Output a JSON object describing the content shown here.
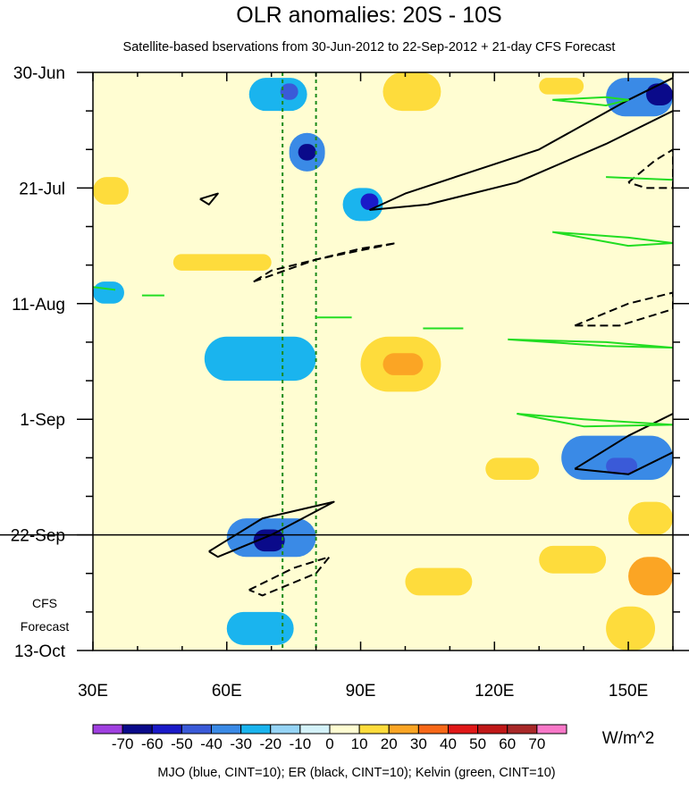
{
  "chart_data": {
    "type": "heatmap",
    "title": "OLR anomalies: 20S - 10S",
    "subtitle": "Satellite-based bservations from 30-Jun-2012 to 22-Sep-2012 + 21-day CFS Forecast",
    "x_axis": {
      "range": [
        30,
        160
      ],
      "ticks": [
        {
          "value": 30,
          "label": "30E"
        },
        {
          "value": 60,
          "label": "60E"
        },
        {
          "value": 90,
          "label": "90E"
        },
        {
          "value": 120,
          "label": "120E"
        },
        {
          "value": 150,
          "label": "150E"
        }
      ]
    },
    "y_axis": {
      "range_days": [
        0,
        105
      ],
      "ticks": [
        {
          "day": 0,
          "label": "30-Jun"
        },
        {
          "day": 21,
          "label": "21-Jul"
        },
        {
          "day": 42,
          "label": "11-Aug"
        },
        {
          "day": 63,
          "label": "1-Sep"
        },
        {
          "day": 84,
          "label": "22-Sep"
        },
        {
          "day": 105,
          "label": "13-Oct"
        }
      ]
    },
    "forecast_start_day": 84,
    "forecast_label": [
      "CFS",
      "Forecast"
    ],
    "reference_longitudes": [
      72.5,
      80
    ],
    "colorbar": {
      "units": "W/m^2",
      "levels": [
        -70,
        -60,
        -50,
        -40,
        -30,
        -20,
        -10,
        0,
        10,
        20,
        30,
        40,
        50,
        60,
        70
      ],
      "colors": [
        "#a040e0",
        "#0a0a8a",
        "#1a1ac8",
        "#3a5ad8",
        "#3a8ae6",
        "#1ab4ee",
        "#96d4f6",
        "#d4f2fa",
        "#fffdd2",
        "#fedc3c",
        "#fba524",
        "#f86818",
        "#e01818",
        "#c01818",
        "#a82828",
        "#f878c8"
      ]
    },
    "anomaly_cells": [
      {
        "lon": [
          65,
          78
        ],
        "day": [
          1,
          7
        ],
        "level": -20
      },
      {
        "lon": [
          72,
          76
        ],
        "day": [
          2,
          5
        ],
        "level": -40
      },
      {
        "lon": [
          74,
          82
        ],
        "day": [
          11,
          18
        ],
        "level": -30
      },
      {
        "lon": [
          76,
          80
        ],
        "day": [
          13,
          16
        ],
        "level": -60
      },
      {
        "lon": [
          86,
          95
        ],
        "day": [
          21,
          27
        ],
        "level": -20
      },
      {
        "lon": [
          90,
          94
        ],
        "day": [
          22,
          25
        ],
        "level": -50
      },
      {
        "lon": [
          145,
          160
        ],
        "day": [
          1,
          8
        ],
        "level": -30
      },
      {
        "lon": [
          154,
          160
        ],
        "day": [
          2,
          6
        ],
        "level": -60
      },
      {
        "lon": [
          55,
          80
        ],
        "day": [
          48,
          56
        ],
        "level": -20
      },
      {
        "lon": [
          135,
          160
        ],
        "day": [
          66,
          74
        ],
        "level": -30
      },
      {
        "lon": [
          145,
          152
        ],
        "day": [
          70,
          73
        ],
        "level": -40
      },
      {
        "lon": [
          60,
          80
        ],
        "day": [
          81,
          88
        ],
        "level": -30
      },
      {
        "lon": [
          66,
          73
        ],
        "day": [
          83,
          87
        ],
        "level": -60
      },
      {
        "lon": [
          30,
          37
        ],
        "day": [
          38,
          42
        ],
        "level": -20
      },
      {
        "lon": [
          60,
          75
        ],
        "day": [
          98,
          104
        ],
        "level": -20
      },
      {
        "lon": [
          30,
          36
        ],
        "day": [
          1,
          6
        ],
        "level": 10
      },
      {
        "lon": [
          95,
          108
        ],
        "day": [
          0,
          7
        ],
        "level": 20
      },
      {
        "lon": [
          130,
          140
        ],
        "day": [
          1,
          4
        ],
        "level": 20
      },
      {
        "lon": [
          30,
          38
        ],
        "day": [
          19,
          24
        ],
        "level": 20
      },
      {
        "lon": [
          48,
          70
        ],
        "day": [
          33,
          36
        ],
        "level": 20
      },
      {
        "lon": [
          90,
          108
        ],
        "day": [
          48,
          58
        ],
        "level": 20
      },
      {
        "lon": [
          95,
          104
        ],
        "day": [
          51,
          55
        ],
        "level": 30
      },
      {
        "lon": [
          118,
          130
        ],
        "day": [
          70,
          74
        ],
        "level": 20
      },
      {
        "lon": [
          130,
          145
        ],
        "day": [
          86,
          91
        ],
        "level": 20
      },
      {
        "lon": [
          150,
          160
        ],
        "day": [
          88,
          95
        ],
        "level": 30
      },
      {
        "lon": [
          100,
          115
        ],
        "day": [
          90,
          95
        ],
        "level": 20
      },
      {
        "lon": [
          145,
          156
        ],
        "day": [
          97,
          105
        ],
        "level": 20
      },
      {
        "lon": [
          98,
          108
        ],
        "day": [
          68,
          74
        ],
        "level": 10
      },
      {
        "lon": [
          150,
          160
        ],
        "day": [
          78,
          84
        ],
        "level": 20
      }
    ],
    "filter_contours": [
      {
        "kind": "ER",
        "style": "solid",
        "color": "black",
        "points": [
          [
            54,
            23
          ],
          [
            58,
            22
          ],
          [
            56,
            24
          ],
          [
            54,
            23
          ]
        ]
      },
      {
        "kind": "ER",
        "style": "solid",
        "color": "black",
        "points": [
          [
            92,
            25
          ],
          [
            100,
            22
          ],
          [
            115,
            18
          ],
          [
            130,
            14
          ],
          [
            150,
            5
          ],
          [
            160,
            1
          ]
        ]
      },
      {
        "kind": "ER",
        "style": "solid",
        "color": "black",
        "points": [
          [
            92,
            25
          ],
          [
            105,
            24
          ],
          [
            125,
            20
          ],
          [
            145,
            13
          ],
          [
            160,
            7
          ]
        ]
      },
      {
        "kind": "ER",
        "style": "dashed",
        "color": "black",
        "points": [
          [
            150,
            20
          ],
          [
            156,
            16
          ],
          [
            160,
            14
          ],
          [
            160,
            21
          ],
          [
            154,
            21
          ],
          [
            150,
            20
          ]
        ]
      },
      {
        "kind": "ER",
        "style": "dashed",
        "color": "black",
        "points": [
          [
            66,
            38
          ],
          [
            80,
            34
          ],
          [
            98,
            31
          ],
          [
            90,
            32
          ],
          [
            70,
            36
          ],
          [
            66,
            38
          ]
        ]
      },
      {
        "kind": "ER",
        "style": "dashed",
        "color": "black",
        "points": [
          [
            138,
            46
          ],
          [
            150,
            42
          ],
          [
            160,
            40
          ],
          [
            160,
            43
          ],
          [
            148,
            46
          ],
          [
            138,
            46
          ]
        ]
      },
      {
        "kind": "ER",
        "style": "solid",
        "color": "black",
        "points": [
          [
            138,
            72
          ],
          [
            150,
            66
          ],
          [
            160,
            62
          ]
        ]
      },
      {
        "kind": "ER",
        "style": "solid",
        "color": "black",
        "points": [
          [
            138,
            72
          ],
          [
            150,
            73
          ],
          [
            160,
            69
          ]
        ]
      },
      {
        "kind": "ER",
        "style": "solid",
        "color": "black",
        "points": [
          [
            56,
            87
          ],
          [
            68,
            81
          ],
          [
            84,
            78
          ],
          [
            70,
            84
          ],
          [
            58,
            88
          ],
          [
            56,
            87
          ]
        ]
      },
      {
        "kind": "ER",
        "style": "dashed",
        "color": "black",
        "points": [
          [
            65,
            94
          ],
          [
            75,
            90
          ],
          [
            83,
            88
          ],
          [
            80,
            91
          ],
          [
            68,
            95
          ],
          [
            65,
            94
          ]
        ]
      },
      {
        "kind": "Kelvin",
        "style": "solid",
        "color": "#22dd22",
        "points": [
          [
            133,
            5
          ],
          [
            145,
            4.5
          ],
          [
            150,
            5
          ],
          [
            145,
            6
          ],
          [
            133,
            5
          ]
        ]
      },
      {
        "kind": "Kelvin",
        "style": "solid",
        "color": "#22dd22",
        "points": [
          [
            145,
            19
          ],
          [
            160,
            19.5
          ]
        ]
      },
      {
        "kind": "Kelvin",
        "style": "solid",
        "color": "#22dd22",
        "points": [
          [
            133,
            29
          ],
          [
            150,
            30
          ],
          [
            160,
            31
          ],
          [
            150,
            31.5
          ],
          [
            133,
            29
          ]
        ]
      },
      {
        "kind": "Kelvin",
        "style": "solid",
        "color": "#22dd22",
        "points": [
          [
            30,
            39
          ],
          [
            35,
            39.5
          ]
        ]
      },
      {
        "kind": "Kelvin",
        "style": "solid",
        "color": "#22dd22",
        "points": [
          [
            41,
            40.5
          ],
          [
            46,
            40.5
          ]
        ]
      },
      {
        "kind": "Kelvin",
        "style": "solid",
        "color": "#22dd22",
        "points": [
          [
            80,
            44.5
          ],
          [
            88,
            44.5
          ]
        ]
      },
      {
        "kind": "Kelvin",
        "style": "solid",
        "color": "#22dd22",
        "points": [
          [
            104,
            46.5
          ],
          [
            113,
            46.5
          ]
        ]
      },
      {
        "kind": "Kelvin",
        "style": "solid",
        "color": "#22dd22",
        "points": [
          [
            123,
            48.5
          ],
          [
            145,
            49
          ],
          [
            160,
            50
          ],
          [
            145,
            49.7
          ],
          [
            123,
            48.5
          ]
        ]
      },
      {
        "kind": "Kelvin",
        "style": "solid",
        "color": "#22dd22",
        "points": [
          [
            125,
            62
          ],
          [
            140,
            63
          ],
          [
            160,
            64
          ],
          [
            140,
            64.3
          ],
          [
            125,
            62
          ]
        ]
      }
    ],
    "legend_caption": "MJO (blue, CINT=10); ER (black, CINT=10); Kelvin (green, CINT=10)"
  }
}
